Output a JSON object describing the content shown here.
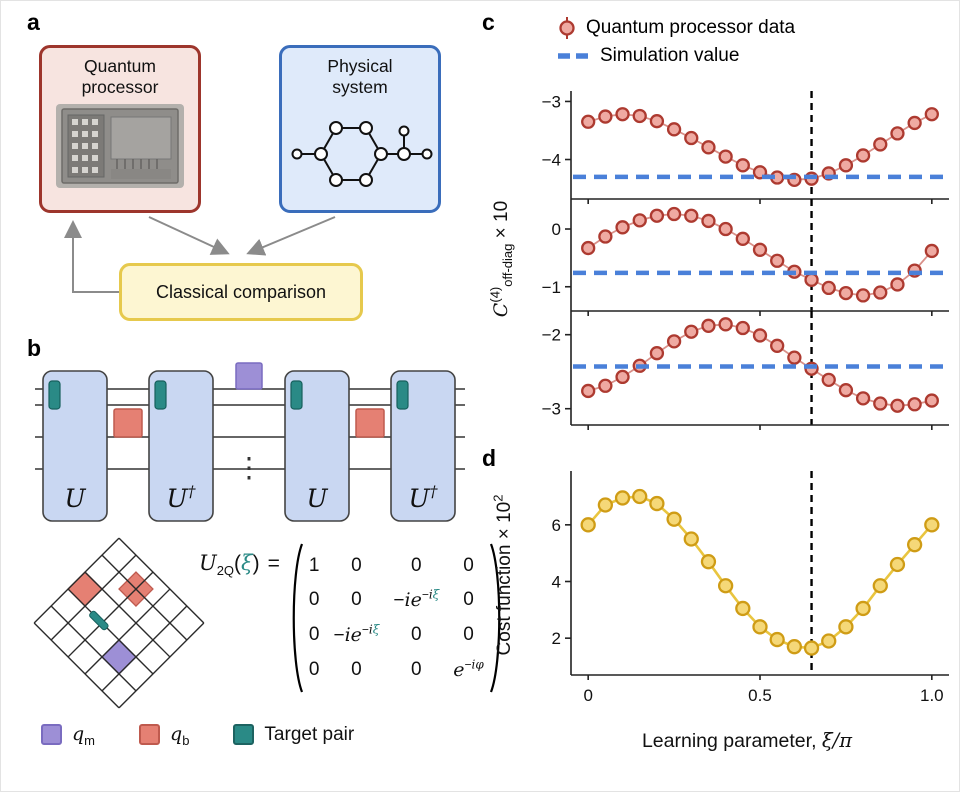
{
  "figure": {
    "panel_labels": {
      "a": "a",
      "b": "b",
      "c": "c",
      "d": "d"
    }
  },
  "panel_a": {
    "quantum_box": {
      "line1": "Quantum",
      "line2": "processor"
    },
    "physical_box": {
      "line1": "Physical",
      "line2": "system"
    },
    "classical_box": {
      "title": "Classical comparison"
    }
  },
  "panel_b": {
    "gate_labels": [
      "U",
      "U†",
      "U",
      "U†"
    ],
    "dots": "⋮",
    "matrix": {
      "lhs": {
        "base": "U",
        "sub": "2Q",
        "open": "(",
        "arg": "ξ",
        "close": ")",
        "equals": "="
      },
      "cells": [
        [
          "1",
          "0",
          "0",
          "0"
        ],
        [
          "0",
          "0",
          "−ie^{−iξ}",
          "0"
        ],
        [
          "0",
          "−ie^{−iξ}",
          "0",
          "0"
        ],
        [
          "0",
          "0",
          "0",
          "e^{−iφ}"
        ]
      ]
    },
    "legend": [
      {
        "base": "q",
        "sub": "m",
        "color": "#9d8fd6",
        "border": "#7a6cc0"
      },
      {
        "base": "q",
        "sub": "b",
        "color": "#e58073",
        "border": "#bf5a4e"
      },
      {
        "text": "Target pair",
        "color": "#2a8a86",
        "border": "#1d6361"
      }
    ]
  },
  "panel_c": {
    "legend": [
      {
        "type": "marker",
        "label": "Quantum processor data"
      },
      {
        "type": "dash",
        "label": "Simulation value"
      }
    ],
    "ylabel": {
      "base": "C",
      "sup": "(4)",
      "sub": "off-diag",
      "suffix": " × 10"
    }
  },
  "panel_d": {
    "ylabel": {
      "text": "Cost function × 10",
      "sup": "2"
    },
    "xlabel": {
      "prefix": "Learning parameter, ",
      "math": "ξ/π"
    }
  },
  "colors": {
    "qp_point_fill": "#efaaa2",
    "qp_point_stroke": "#ad3a30",
    "qp_line": "#d99089",
    "sim_line": "#4a80d9",
    "vline": "#000000",
    "cost_point_fill": "#f5d878",
    "cost_point_stroke": "#cf9c15",
    "cost_line": "#e9c53f",
    "axis": "#222222",
    "teal": "#2a8a86",
    "purple": "#9d8fd6",
    "salmon": "#e58073",
    "gate_fill": "#c9d7f2"
  },
  "chart_data": [
    {
      "id": "c-top",
      "type": "scatter",
      "series": "Quantum processor data",
      "sim_label": "Simulation value",
      "x": [
        0,
        0.05,
        0.1,
        0.15,
        0.2,
        0.25,
        0.3,
        0.35,
        0.4,
        0.45,
        0.5,
        0.55,
        0.6,
        0.65,
        0.7,
        0.75,
        0.8,
        0.85,
        0.9,
        0.95,
        1
      ],
      "y": [
        -3.35,
        -3.26,
        -3.22,
        -3.25,
        -3.34,
        -3.48,
        -3.63,
        -3.79,
        -3.95,
        -4.1,
        -4.22,
        -4.31,
        -4.35,
        -4.33,
        -4.24,
        -4.1,
        -3.93,
        -3.74,
        -3.55,
        -3.37,
        -3.22
      ],
      "yerr": 0.07,
      "sim_value": -4.3,
      "vline": 0.65,
      "ylim": [
        -4.68,
        -2.82
      ],
      "yticks": [
        -3,
        -4
      ],
      "ytick_labels": [
        "−3",
        "−4"
      ],
      "xticks": [
        0,
        0.5,
        1
      ]
    },
    {
      "id": "c-mid",
      "type": "scatter",
      "series": "Quantum processor data",
      "sim_label": "Simulation value",
      "x": [
        0,
        0.05,
        0.1,
        0.15,
        0.2,
        0.25,
        0.3,
        0.35,
        0.4,
        0.45,
        0.5,
        0.55,
        0.6,
        0.65,
        0.7,
        0.75,
        0.8,
        0.85,
        0.9,
        0.95,
        1
      ],
      "y": [
        -0.33,
        -0.13,
        0.03,
        0.15,
        0.23,
        0.26,
        0.23,
        0.14,
        0,
        -0.17,
        -0.36,
        -0.55,
        -0.74,
        -0.88,
        -1.02,
        -1.11,
        -1.15,
        -1.1,
        -0.96,
        -0.72,
        -0.38
      ],
      "yerr": 0.07,
      "sim_value": -0.76,
      "vline": 0.65,
      "ylim": [
        -1.42,
        0.52
      ],
      "yticks": [
        0,
        -1
      ],
      "ytick_labels": [
        "0",
        "−1"
      ],
      "xticks": [
        0,
        0.5,
        1
      ]
    },
    {
      "id": "c-bottom",
      "type": "scatter",
      "series": "Quantum processor data",
      "sim_label": "Simulation value",
      "x": [
        0,
        0.05,
        0.1,
        0.15,
        0.2,
        0.25,
        0.3,
        0.35,
        0.4,
        0.45,
        0.5,
        0.55,
        0.6,
        0.65,
        0.7,
        0.75,
        0.8,
        0.85,
        0.9,
        0.95,
        1
      ],
      "y": [
        -2.76,
        -2.69,
        -2.57,
        -2.42,
        -2.25,
        -2.09,
        -1.96,
        -1.88,
        -1.86,
        -1.91,
        -2.01,
        -2.15,
        -2.31,
        -2.46,
        -2.61,
        -2.75,
        -2.86,
        -2.93,
        -2.96,
        -2.94,
        -2.89
      ],
      "yerr": 0.06,
      "sim_value": -2.43,
      "vline": 0.65,
      "ylim": [
        -3.22,
        -1.68
      ],
      "yticks": [
        -2,
        -3
      ],
      "ytick_labels": [
        "−2",
        "−3"
      ],
      "xticks": [
        0,
        0.5,
        1
      ]
    },
    {
      "id": "d",
      "type": "scatter",
      "series": "Cost function",
      "x": [
        0,
        0.05,
        0.1,
        0.15,
        0.2,
        0.25,
        0.3,
        0.35,
        0.4,
        0.45,
        0.5,
        0.55,
        0.6,
        0.65,
        0.7,
        0.75,
        0.8,
        0.85,
        0.9,
        0.95,
        1
      ],
      "y": [
        6,
        6.7,
        6.95,
        7,
        6.75,
        6.2,
        5.5,
        4.7,
        3.85,
        3.05,
        2.4,
        1.95,
        1.7,
        1.65,
        1.9,
        2.4,
        3.05,
        3.85,
        4.6,
        5.3,
        6
      ],
      "vline": 0.65,
      "ylim": [
        0.7,
        7.9
      ],
      "yticks": [
        2,
        4,
        6
      ],
      "ytick_labels": [
        "2",
        "4",
        "6"
      ],
      "xticks": [
        0,
        0.5,
        1
      ],
      "xtick_labels": [
        "0",
        "0.5",
        "1.0"
      ],
      "xlabel": "Learning parameter, ξ/π",
      "ylabel": "Cost function × 10²"
    }
  ]
}
